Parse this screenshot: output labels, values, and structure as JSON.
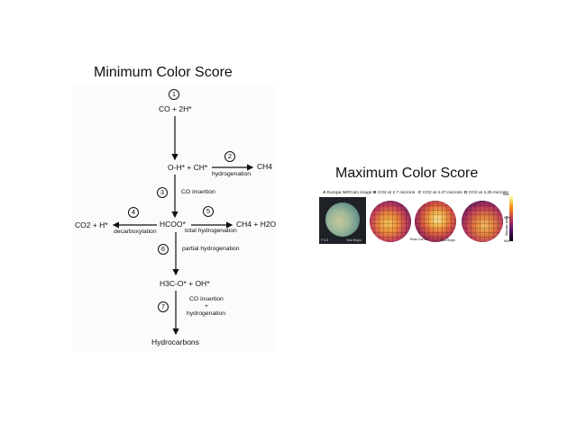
{
  "titles": {
    "left": "Minimum Color Score",
    "right": "Maximum Color Score"
  },
  "diagram": {
    "nodes": {
      "start": "CO + 2H*",
      "intermediate": "O-H* + CH*",
      "methane_top": "CH4",
      "formate": "HCOO*",
      "co2_side": "CO2 + H*",
      "methane_water": "CH4 + H2O",
      "methoxy": "H3C-O* + OH*",
      "end": "Hydrocarbons"
    },
    "steps": [
      "1",
      "2",
      "3",
      "4",
      "5",
      "6",
      "7"
    ],
    "edge_labels": {
      "hydrogenation": "hydrogenation",
      "co_insertion": "CO insertion",
      "decarboxylation": "decarboxylation",
      "total_hydrogenation": "total hydrogenation",
      "partial_hydrogenation": "partial hydrogenation",
      "co_insertion_plus_line1": "CO insertion",
      "co_insertion_plus_line2": "+",
      "co_insertion_plus_line3": "hydrogenation"
    }
  },
  "figure": {
    "panels": [
      {
        "letter": "A",
        "caption": "Europa NIRCam image"
      },
      {
        "letter": "B",
        "caption": "CO2 at 2.7 microns"
      },
      {
        "letter": "C",
        "caption": "CO2 at 4.27 microns"
      },
      {
        "letter": "D",
        "caption": "CO2 at 4.25 microns"
      }
    ],
    "colorbar": {
      "top": "Max",
      "mid": "Med",
      "bottom": "Min",
      "label": "Band intensity"
    },
    "annotations": {
      "a_corner_left": "F 0.5",
      "a_corner_right": "Tara Regio",
      "c_left": "Ross Corner",
      "c_right": "Tara Regio"
    }
  }
}
